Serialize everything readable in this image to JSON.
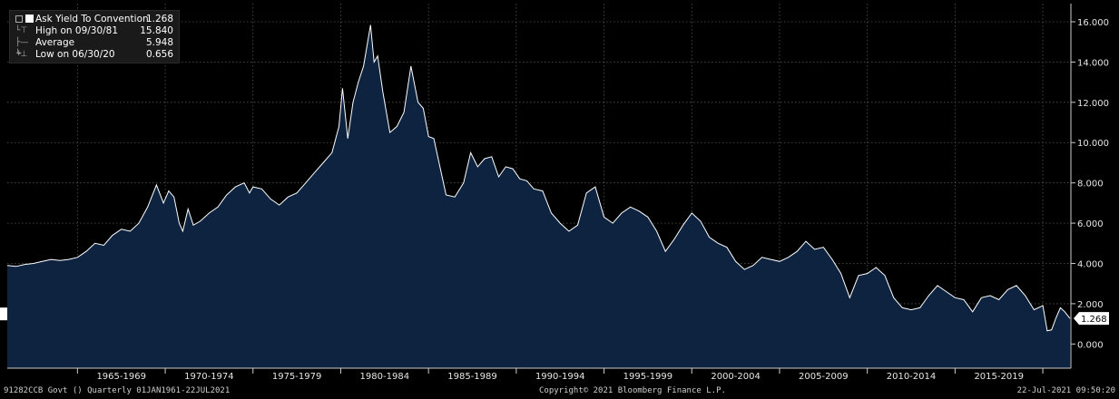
{
  "legend": {
    "series_label": "Ask Yield To Convention",
    "series_value": "1.268",
    "high_label": "High on 09/30/81",
    "high_value": "15.840",
    "average_label": "Average",
    "average_value": "5.948",
    "low_label": "Low on 06/30/20",
    "low_value": "0.656"
  },
  "footer": {
    "left": "91282CCB Govt () Quarterly 01JAN1961-22JUL2021",
    "center": "Copyright© 2021 Bloomberg Finance L.P.",
    "right": "22-Jul-2021 09:50:20"
  },
  "last_value_label": "1.268",
  "colors": {
    "background": "#000000",
    "area_fill": "#0d2340",
    "line": "#ffffff",
    "grid": "#555555",
    "axis_text": "#e6e6e6"
  },
  "chart_data": {
    "type": "area",
    "ylim": [
      -1.2,
      16.9
    ],
    "xlim": [
      1961.0,
      2021.6
    ],
    "y_ticks": [
      "0.000",
      "2.000",
      "4.000",
      "6.000",
      "8.000",
      "10.000",
      "12.000",
      "14.000",
      "16.000"
    ],
    "y_tick_values": [
      0,
      2,
      4,
      6,
      8,
      10,
      12,
      14,
      16
    ],
    "x_tick_labels": [
      "1965-1969",
      "1970-1974",
      "1975-1979",
      "1980-1984",
      "1985-1989",
      "1990-1994",
      "1995-1999",
      "2000-2004",
      "2005-2009",
      "2010-2014",
      "2015-2019"
    ],
    "x_tick_centers": [
      1967.5,
      1972.5,
      1977.5,
      1982.5,
      1987.5,
      1992.5,
      1997.5,
      2002.5,
      2007.5,
      2012.5,
      2017.5
    ],
    "grid": true,
    "series": [
      {
        "x": [
          1961.0,
          1961.5,
          1962.0,
          1962.5,
          1963.0,
          1963.5,
          1964.0,
          1964.5,
          1965.0,
          1965.5,
          1966.0,
          1966.5,
          1967.0,
          1967.5,
          1968.0,
          1968.5,
          1969.0,
          1969.5,
          1969.9,
          1970.2,
          1970.5,
          1970.8,
          1971.0,
          1971.3,
          1971.6,
          1972.0,
          1972.5,
          1973.0,
          1973.5,
          1974.0,
          1974.5,
          1974.8,
          1975.0,
          1975.5,
          1976.0,
          1976.5,
          1977.0,
          1977.5,
          1978.0,
          1978.5,
          1979.0,
          1979.5,
          1979.9,
          1980.1,
          1980.4,
          1980.7,
          1981.0,
          1981.3,
          1981.7,
          1981.9,
          1982.1,
          1982.4,
          1982.8,
          1983.2,
          1983.6,
          1984.0,
          1984.4,
          1984.7,
          1985.0,
          1985.3,
          1985.6,
          1986.0,
          1986.5,
          1987.0,
          1987.4,
          1987.8,
          1988.2,
          1988.6,
          1989.0,
          1989.4,
          1989.8,
          1990.2,
          1990.6,
          1991.0,
          1991.5,
          1992.0,
          1992.5,
          1993.0,
          1993.5,
          1994.0,
          1994.5,
          1995.0,
          1995.5,
          1996.0,
          1996.5,
          1997.0,
          1997.5,
          1998.0,
          1998.5,
          1999.0,
          1999.5,
          2000.0,
          2000.5,
          2001.0,
          2001.5,
          2002.0,
          2002.5,
          2003.0,
          2003.5,
          2004.0,
          2004.5,
          2005.0,
          2005.5,
          2006.0,
          2006.5,
          2007.0,
          2007.5,
          2008.0,
          2008.5,
          2009.0,
          2009.5,
          2010.0,
          2010.5,
          2011.0,
          2011.5,
          2012.0,
          2012.5,
          2013.0,
          2013.5,
          2014.0,
          2014.5,
          2015.0,
          2015.5,
          2016.0,
          2016.5,
          2017.0,
          2017.5,
          2018.0,
          2018.5,
          2019.0,
          2019.5,
          2020.0,
          2020.25,
          2020.5,
          2020.75,
          2021.0,
          2021.25,
          2021.55
        ],
        "y": [
          3.9,
          3.85,
          3.95,
          4.0,
          4.1,
          4.2,
          4.15,
          4.2,
          4.3,
          4.6,
          5.0,
          4.9,
          5.4,
          5.7,
          5.6,
          6.0,
          6.8,
          7.9,
          7.0,
          7.6,
          7.3,
          6.0,
          5.6,
          6.7,
          5.9,
          6.1,
          6.5,
          6.8,
          7.4,
          7.8,
          8.0,
          7.5,
          7.8,
          7.7,
          7.2,
          6.9,
          7.3,
          7.5,
          8.0,
          8.5,
          9.0,
          9.5,
          10.8,
          12.7,
          10.2,
          12.0,
          13.0,
          13.8,
          15.84,
          14.0,
          14.3,
          12.5,
          10.5,
          10.8,
          11.5,
          13.8,
          12.0,
          11.7,
          10.3,
          10.2,
          9.0,
          7.4,
          7.3,
          8.0,
          9.5,
          8.8,
          9.2,
          9.3,
          8.3,
          8.8,
          8.7,
          8.2,
          8.1,
          7.7,
          7.6,
          6.5,
          6.0,
          5.6,
          5.9,
          7.5,
          7.8,
          6.3,
          6.0,
          6.5,
          6.8,
          6.6,
          6.3,
          5.6,
          4.6,
          5.2,
          5.9,
          6.5,
          6.1,
          5.3,
          5.0,
          4.8,
          4.1,
          3.7,
          3.9,
          4.3,
          4.2,
          4.1,
          4.3,
          4.6,
          5.1,
          4.7,
          4.8,
          4.2,
          3.5,
          2.3,
          3.4,
          3.5,
          3.8,
          3.4,
          2.3,
          1.8,
          1.7,
          1.8,
          2.4,
          2.9,
          2.6,
          2.3,
          2.2,
          1.6,
          2.3,
          2.4,
          2.2,
          2.7,
          2.9,
          2.4,
          1.7,
          1.9,
          0.656,
          0.7,
          1.3,
          1.8,
          1.6,
          1.268
        ]
      }
    ]
  }
}
